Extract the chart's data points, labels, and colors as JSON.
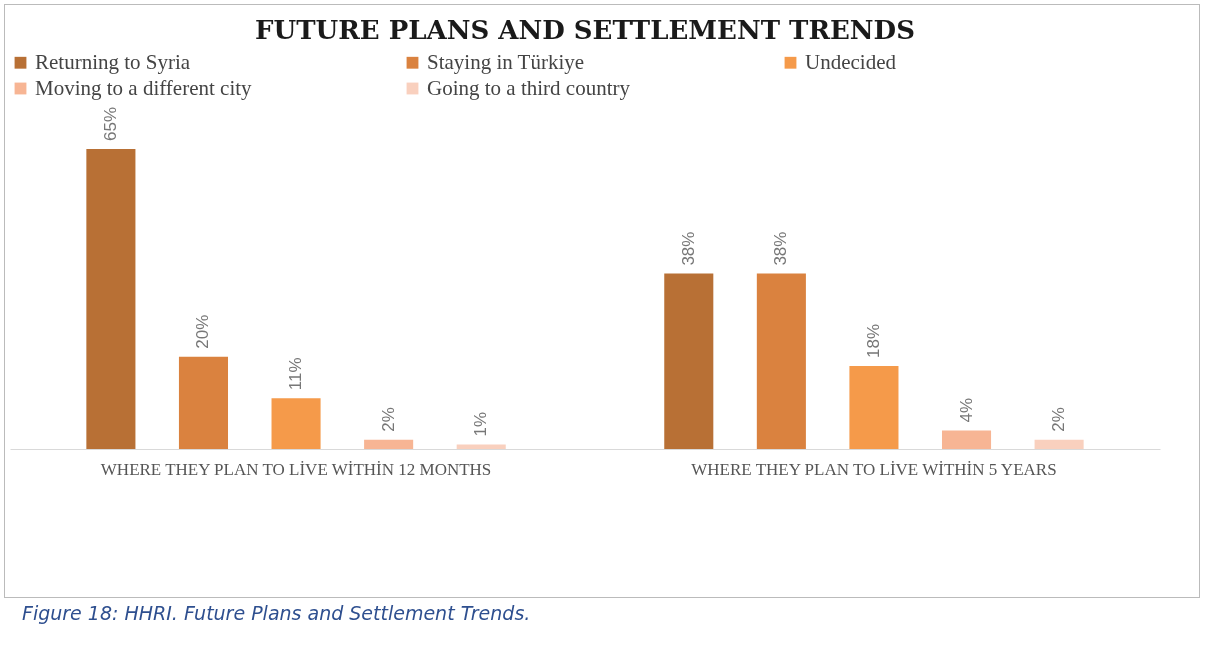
{
  "chart_data": {
    "type": "bar",
    "title": "FUTURE PLANS AND SETTLEMENT TRENDS",
    "categories": [
      "WHERE THEY PLAN TO LİVE WİTHİN 12 MONTHS",
      "WHERE THEY PLAN TO LİVE WİTHİN 5 YEARS"
    ],
    "series": [
      {
        "name": "Returning to Syria",
        "color": "#b87035",
        "values": [
          65,
          38
        ],
        "value_labels": [
          "65%",
          "38%"
        ]
      },
      {
        "name": "Staying in Türkiye",
        "color": "#da823f",
        "values": [
          20,
          38
        ],
        "value_labels": [
          "20%",
          "38%"
        ]
      },
      {
        "name": "Undecided",
        "color": "#f59a4a",
        "values": [
          11,
          18
        ],
        "value_labels": [
          "11%",
          "18%"
        ]
      },
      {
        "name": "Moving to a different city",
        "color": "#f7b594",
        "values": [
          2,
          4
        ],
        "value_labels": [
          "2%",
          "4%"
        ]
      },
      {
        "name": "Going to a third country",
        "color": "#f9d0be",
        "values": [
          1,
          2
        ],
        "value_labels": [
          "1%",
          "2%"
        ]
      }
    ],
    "legend": "top",
    "annotations": [
      "Figure 18: HHRI. Future Plans and Settlement Trends."
    ]
  }
}
